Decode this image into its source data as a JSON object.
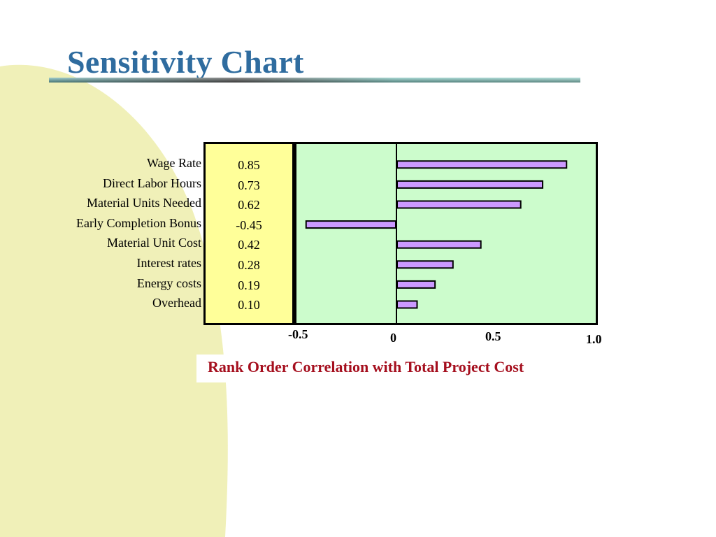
{
  "slide": {
    "title": "Sensitivity Chart",
    "caption": "Rank Order Correlation with Total Project Cost"
  },
  "colors": {
    "title": "#2f6c9f",
    "caption": "#a50f1e",
    "bar_fill": "#cc99ff",
    "plot_background": "#ccfccc",
    "values_background": "#ffff99",
    "decorative_blob": "#f0f0b8"
  },
  "chart_data": {
    "type": "bar",
    "orientation": "horizontal",
    "categories": [
      "Wage Rate",
      "Direct Labor Hours",
      "Material Units Needed",
      "Early Completion Bonus",
      "Material Unit Cost",
      "Interest rates",
      "Energy costs",
      "Overhead"
    ],
    "values": [
      0.85,
      0.73,
      0.62,
      -0.45,
      0.42,
      0.28,
      0.19,
      0.1
    ],
    "value_labels": [
      "0.85",
      "0.73",
      "0.62",
      "-0.45",
      "0.42",
      "0.28",
      "0.19",
      "0.10"
    ],
    "xlim": [
      -0.5,
      1.0
    ],
    "xticks": [
      {
        "value": -0.5,
        "label": "-0.5"
      },
      {
        "value": 0,
        "label": "0"
      },
      {
        "value": 0.5,
        "label": "0.5"
      },
      {
        "value": 1.0,
        "label": "1.0"
      }
    ],
    "xlabel": "Rank Order Correlation with Total Project Cost",
    "grid": false,
    "legend": "none"
  }
}
